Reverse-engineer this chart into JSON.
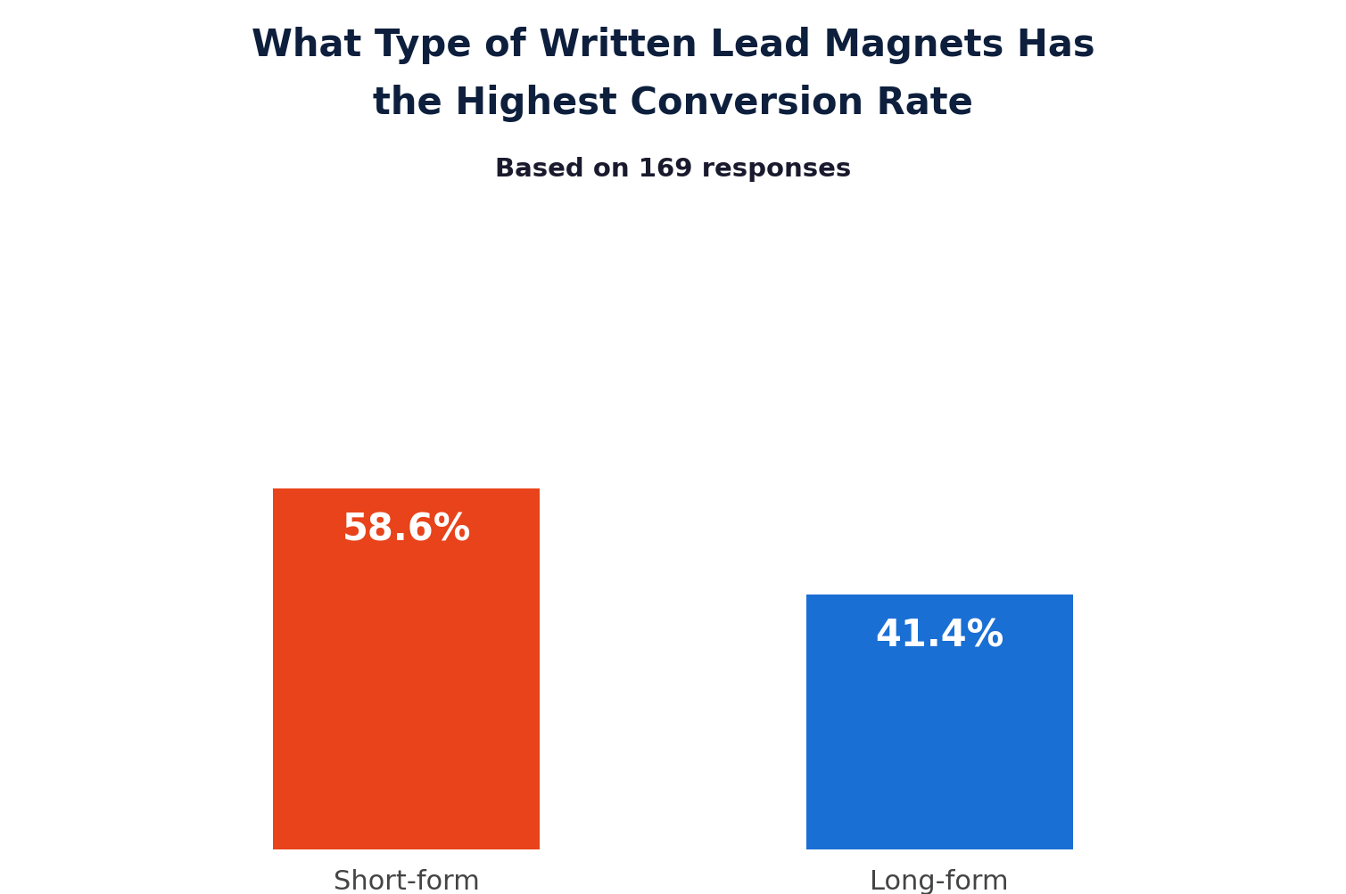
{
  "title_line1": "What Type of Written Lead Magnets Has",
  "title_line2": "the Highest Conversion Rate",
  "subtitle": "Based on 169 responses",
  "categories": [
    "Short-form",
    "Long-form"
  ],
  "values": [
    58.6,
    41.4
  ],
  "bar_colors": [
    "#E8431A",
    "#1A6FD4"
  ],
  "bar_labels": [
    "58.6%",
    "41.4%"
  ],
  "label_color": "#FFFFFF",
  "title_color": "#0D1F3C",
  "subtitle_color": "#1A1A2E",
  "tick_color": "#444444",
  "background_color": "#FFFFFF",
  "title_fontsize": 30,
  "subtitle_fontsize": 21,
  "bar_label_fontsize": 30,
  "tick_fontsize": 22,
  "ylim": [
    0,
    80
  ],
  "bar_width": 0.22,
  "x_positions": [
    0.28,
    0.72
  ]
}
